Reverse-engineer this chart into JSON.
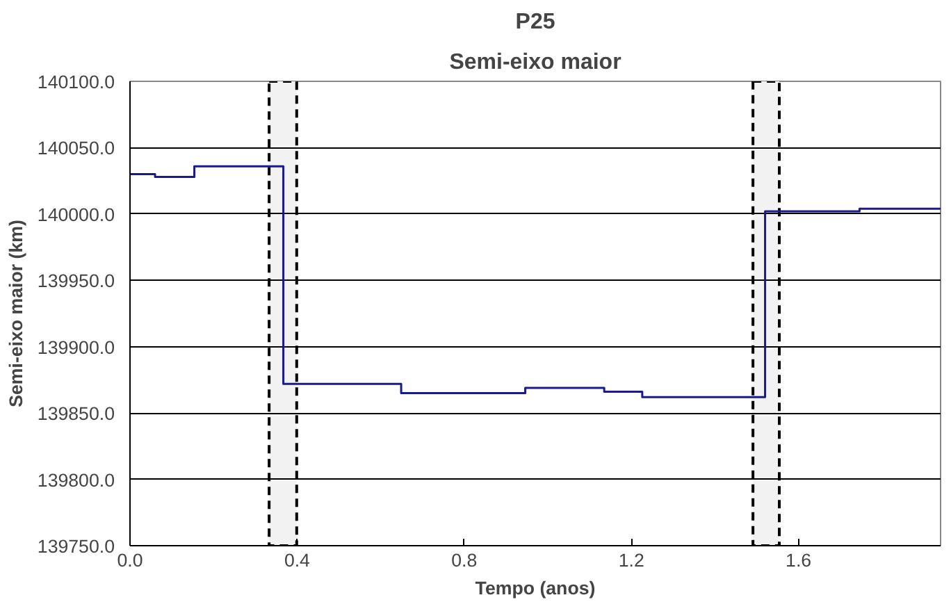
{
  "chart_data": {
    "type": "step",
    "title": "P25",
    "subtitle": "Semi-eixo maior",
    "xlabel": "Tempo (anos)",
    "ylabel": "Semi-eixo maior (km)",
    "x": [
      0,
      0.06,
      0.154,
      0.367,
      0.649,
      0.946,
      1.135,
      1.226,
      1.52,
      1.746,
      1.94
    ],
    "series": [
      {
        "color": "#1a1a8c",
        "values": [
          140030,
          140028,
          140036,
          139872,
          139865,
          139869,
          139866,
          139862,
          140002,
          140004,
          140004
        ]
      }
    ],
    "xlim": [
      0,
      1.94
    ],
    "ylim": [
      139750,
      140100
    ],
    "xticks": [
      {
        "value": 0,
        "label": "0.0"
      },
      {
        "value": 0.4,
        "label": "0.4"
      },
      {
        "value": 0.8,
        "label": "0.8"
      },
      {
        "value": 1.2,
        "label": "1.2"
      },
      {
        "value": 1.6,
        "label": "1.6"
      }
    ],
    "yticks": [
      {
        "value": 139750,
        "label": "139750.0"
      },
      {
        "value": 139800,
        "label": "139800.0"
      },
      {
        "value": 139850,
        "label": "139850.0"
      },
      {
        "value": 139900,
        "label": "139900.0"
      },
      {
        "value": 139950,
        "label": "139950.0"
      },
      {
        "value": 140000,
        "label": "140000.0"
      },
      {
        "value": 140050,
        "label": "140050.0"
      },
      {
        "value": 140100,
        "label": "140100.0"
      }
    ],
    "bands": [
      {
        "axis": "x",
        "from": 0.333,
        "to": 0.399,
        "color": "#f2f2f2"
      },
      {
        "axis": "x",
        "from": 1.491,
        "to": 1.554,
        "color": "#f2f2f2"
      }
    ],
    "grid": "y",
    "marker": "none",
    "line_style": "solid"
  }
}
